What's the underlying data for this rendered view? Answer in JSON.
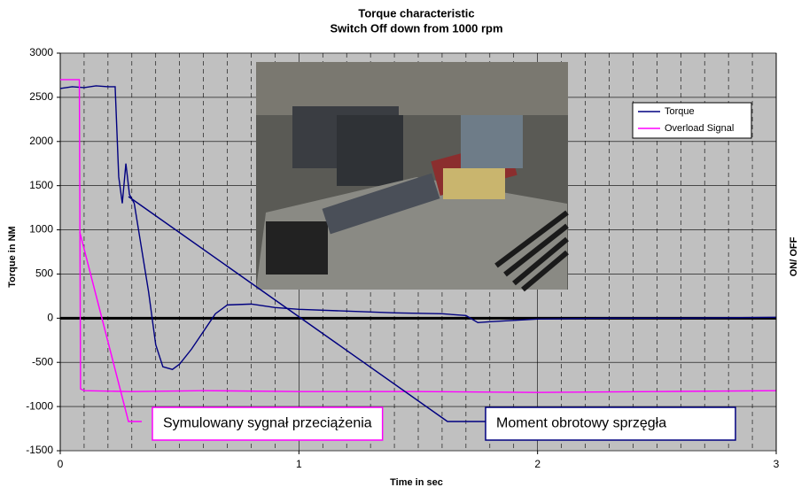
{
  "chart_data": {
    "type": "line",
    "title": "Torque characteristic",
    "subtitle": "Switch Off down from 1000 rpm",
    "x_label": "Time in sec",
    "y_label": "Torque in NM",
    "y2_label": "ON/ OFF",
    "xlim": [
      0,
      3
    ],
    "xticks": [
      0,
      1,
      2,
      3
    ],
    "xminorticks": [
      0.1,
      0.2,
      0.3,
      0.4,
      0.5,
      0.6,
      0.7,
      0.8,
      0.9,
      1.1,
      1.2,
      1.3,
      1.4,
      1.5,
      1.6,
      1.7,
      1.8,
      1.9,
      2.1,
      2.2,
      2.3,
      2.4,
      2.5,
      2.6,
      2.7,
      2.8,
      2.9
    ],
    "ylim": [
      -1500,
      3000
    ],
    "yticks": [
      -1500,
      -1000,
      -500,
      0,
      500,
      1000,
      1500,
      2000,
      2500,
      3000
    ],
    "grid": true,
    "series": [
      {
        "name": "Torque",
        "color": "#000080",
        "x": [
          0,
          0.05,
          0.1,
          0.15,
          0.2,
          0.23,
          0.245,
          0.26,
          0.275,
          0.29,
          0.31,
          0.34,
          0.37,
          0.4,
          0.43,
          0.47,
          0.5,
          0.55,
          0.6,
          0.65,
          0.7,
          0.8,
          0.9,
          1.0,
          1.2,
          1.4,
          1.6,
          1.7,
          1.75,
          1.8,
          2.0,
          2.3,
          2.6,
          3.0
        ],
        "values": [
          2600,
          2620,
          2610,
          2630,
          2620,
          2620,
          1600,
          1300,
          1750,
          1400,
          1300,
          800,
          300,
          -300,
          -550,
          -580,
          -520,
          -350,
          -150,
          50,
          150,
          160,
          120,
          100,
          80,
          60,
          50,
          30,
          -50,
          -40,
          -10,
          0,
          0,
          10
        ]
      },
      {
        "name": "Overload Signal",
        "color": "#ff00ff",
        "x": [
          0,
          0.08,
          0.085,
          0.1,
          0.3,
          0.6,
          1.0,
          1.5,
          2.0,
          2.5,
          3.0
        ],
        "values": [
          2700,
          2700,
          -800,
          -820,
          -830,
          -820,
          -830,
          -830,
          -840,
          -830,
          -820
        ]
      }
    ],
    "legend": "upper right",
    "annotations": [
      {
        "text": "Symulowany sygnał przeciążenia",
        "color": "#ff00ff"
      },
      {
        "text": "Moment obrotowy sprzęgła",
        "color": "#000080"
      }
    ]
  }
}
